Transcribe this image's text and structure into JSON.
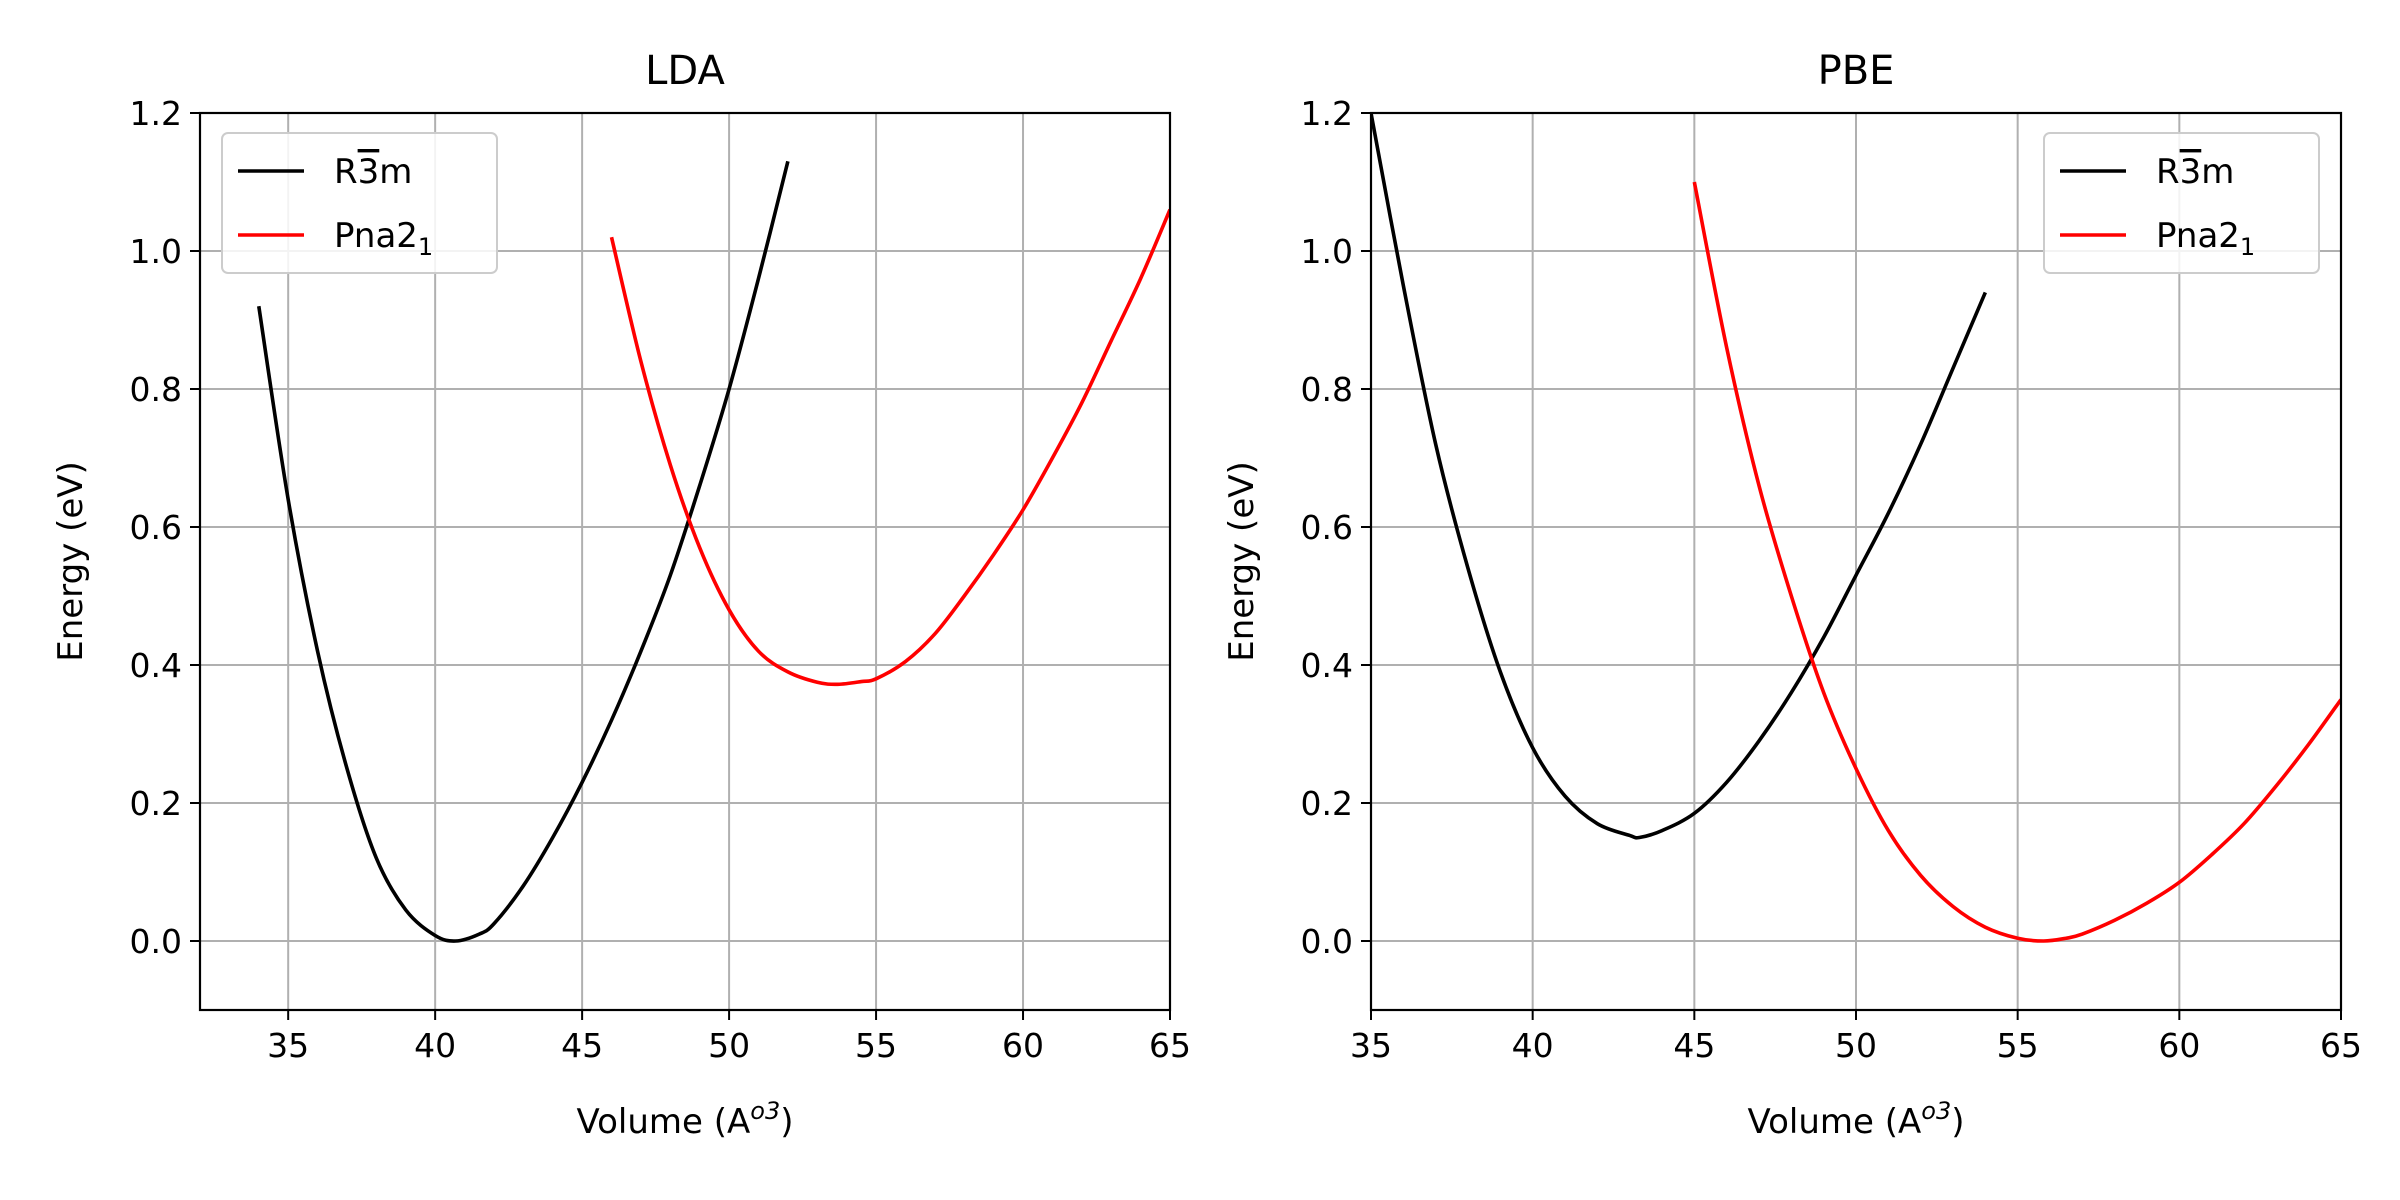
{
  "chart_data": [
    {
      "type": "line",
      "title": "LDA",
      "xlabel": "Volume (A",
      "xlabel_sup": "o3",
      "xlabel_end": ")",
      "ylabel": "Energy (eV)",
      "xlim": [
        32,
        65
      ],
      "ylim": [
        -0.1,
        1.2
      ],
      "xticks": [
        35,
        40,
        45,
        50,
        55,
        60,
        65
      ],
      "yticks": [
        0.0,
        0.2,
        0.4,
        0.6,
        0.8,
        1.0,
        1.2
      ],
      "xtick_labels": [
        "35",
        "40",
        "45",
        "50",
        "55",
        "60",
        "65"
      ],
      "ytick_labels": [
        "0.0",
        "0.2",
        "0.4",
        "0.6",
        "0.8",
        "1.0",
        "1.2"
      ],
      "grid": true,
      "legend_position": "top-left",
      "series": [
        {
          "name": "R3m",
          "name_parts": {
            "base": "R",
            "bar": "3",
            "rest": "m"
          },
          "color": "#000000",
          "x": [
            34,
            35,
            36,
            37,
            38,
            39,
            40,
            40.7,
            41.5,
            42,
            43,
            44,
            45,
            46,
            47,
            48,
            49,
            50,
            51,
            52
          ],
          "y": [
            0.92,
            0.64,
            0.42,
            0.25,
            0.12,
            0.045,
            0.008,
            0.0,
            0.01,
            0.025,
            0.08,
            0.15,
            0.23,
            0.32,
            0.42,
            0.53,
            0.66,
            0.8,
            0.96,
            1.13
          ]
        },
        {
          "name": "Pna21",
          "name_parts": {
            "base": "Pna2",
            "sub": "1"
          },
          "color": "#ff0000",
          "x": [
            46,
            47,
            48,
            49,
            50,
            51,
            52,
            53,
            53.7,
            54.5,
            55,
            56,
            57,
            58,
            59,
            60,
            61,
            62,
            63,
            64,
            65
          ],
          "y": [
            1.02,
            0.84,
            0.69,
            0.57,
            0.48,
            0.42,
            0.39,
            0.375,
            0.372,
            0.376,
            0.38,
            0.405,
            0.445,
            0.5,
            0.56,
            0.625,
            0.7,
            0.78,
            0.87,
            0.96,
            1.06
          ]
        }
      ]
    },
    {
      "type": "line",
      "title": "PBE",
      "xlabel": "Volume (A",
      "xlabel_sup": "o3",
      "xlabel_end": ")",
      "ylabel": "Energy (eV)",
      "xlim": [
        35,
        65
      ],
      "ylim": [
        -0.1,
        1.2
      ],
      "xticks": [
        35,
        40,
        45,
        50,
        55,
        60,
        65
      ],
      "yticks": [
        0.0,
        0.2,
        0.4,
        0.6,
        0.8,
        1.0,
        1.2
      ],
      "xtick_labels": [
        "35",
        "40",
        "45",
        "50",
        "55",
        "60",
        "65"
      ],
      "ytick_labels": [
        "0.0",
        "0.2",
        "0.4",
        "0.6",
        "0.8",
        "1.0",
        "1.2"
      ],
      "grid": true,
      "legend_position": "top-right",
      "series": [
        {
          "name": "R3m",
          "name_parts": {
            "base": "R",
            "bar": "3",
            "rest": "m"
          },
          "color": "#000000",
          "x": [
            35,
            36,
            37,
            38,
            39,
            40,
            41,
            42,
            43,
            43.3,
            44,
            45,
            46,
            47,
            48,
            49,
            50,
            51,
            52,
            53,
            54
          ],
          "y": [
            1.2,
            0.95,
            0.72,
            0.54,
            0.39,
            0.28,
            0.21,
            0.17,
            0.153,
            0.15,
            0.16,
            0.185,
            0.23,
            0.29,
            0.36,
            0.44,
            0.53,
            0.62,
            0.72,
            0.83,
            0.94
          ],
          "clip": true
        },
        {
          "name": "Pna21",
          "name_parts": {
            "base": "Pna2",
            "sub": "1"
          },
          "color": "#ff0000",
          "x": [
            45,
            46,
            47,
            48,
            49,
            50,
            51,
            52,
            53,
            54,
            55,
            55.8,
            56.5,
            57,
            58,
            59,
            60,
            61,
            62,
            63,
            64,
            65
          ],
          "y": [
            1.1,
            0.86,
            0.66,
            0.5,
            0.36,
            0.25,
            0.16,
            0.095,
            0.05,
            0.02,
            0.004,
            0.0,
            0.004,
            0.01,
            0.03,
            0.055,
            0.085,
            0.125,
            0.17,
            0.225,
            0.285,
            0.35
          ]
        }
      ]
    }
  ]
}
